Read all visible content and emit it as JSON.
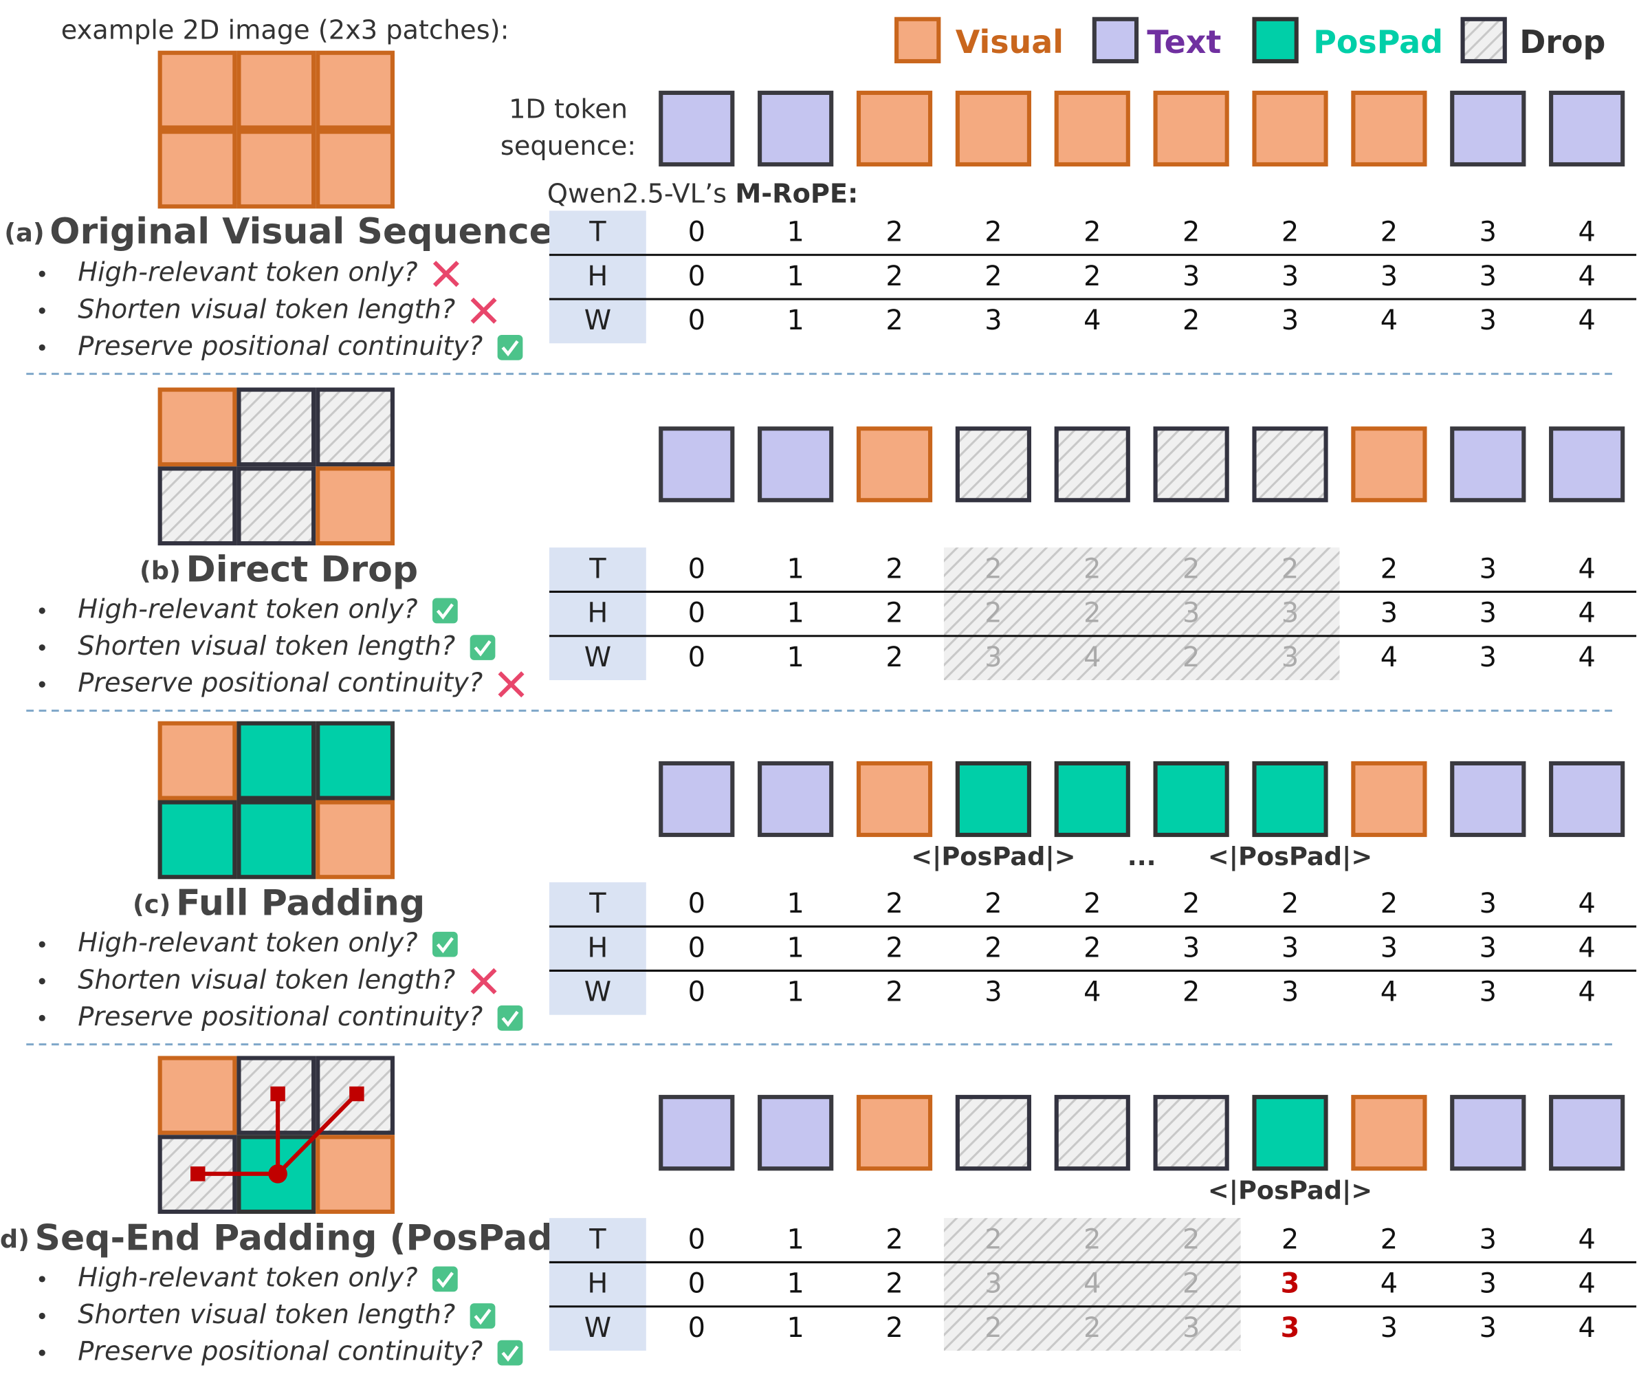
{
  "legend": [
    {
      "label": "Visual",
      "fill": "#f4aa80",
      "stroke": "#c9661d",
      "text_color": "#c9661d"
    },
    {
      "label": "Text",
      "fill": "#c5c5f0",
      "stroke": "#3a3a40",
      "text_color": "#7030a0"
    },
    {
      "label": "PosPad",
      "fill": "#00cfa8",
      "stroke": "#333333",
      "text_color": "#00cfa8"
    },
    {
      "label": "Drop",
      "fill": "hatch",
      "stroke": "#333340",
      "text_color": "#333333"
    }
  ],
  "example_caption": "example 2D image (2x3 patches):",
  "sequence_caption": [
    "1D token",
    "sequence:"
  ],
  "mrope_caption": {
    "prefix": "Qwen2.5-VL’s ",
    "emphasis": "M-RoPE:"
  },
  "panels": [
    {
      "label": "(a)",
      "title": "Original Visual Sequence",
      "grid": [
        "Visual",
        "Visual",
        "Visual",
        "Visual",
        "Visual",
        "Visual"
      ],
      "sequence": [
        "Text",
        "Text",
        "Visual",
        "Visual",
        "Visual",
        "Visual",
        "Visual",
        "Visual",
        "Text",
        "Text"
      ],
      "pospad_labels": [],
      "rows": [
        {
          "axis": "T",
          "values": [
            0,
            1,
            2,
            2,
            2,
            2,
            2,
            2,
            3,
            4
          ]
        },
        {
          "axis": "H",
          "values": [
            0,
            1,
            2,
            2,
            2,
            3,
            3,
            3,
            3,
            4
          ]
        },
        {
          "axis": "W",
          "values": [
            0,
            1,
            2,
            3,
            4,
            2,
            3,
            4,
            3,
            4
          ]
        }
      ],
      "bullets": [
        {
          "text": "High-relevant token only?",
          "ok": false
        },
        {
          "text": "Shorten visual token length?",
          "ok": false
        },
        {
          "text": "Preserve positional continuity?",
          "ok": true
        }
      ]
    },
    {
      "label": "(b)",
      "title": "Direct Drop",
      "grid": [
        "Visual",
        "Drop",
        "Drop",
        "Drop",
        "Drop",
        "Visual"
      ],
      "sequence": [
        "Text",
        "Text",
        "Visual",
        "Drop",
        "Drop",
        "Drop",
        "Drop",
        "Visual",
        "Text",
        "Text"
      ],
      "pospad_labels": [],
      "rows": [
        {
          "axis": "T",
          "values": [
            0,
            1,
            2,
            2,
            2,
            2,
            2,
            2,
            3,
            4
          ]
        },
        {
          "axis": "H",
          "values": [
            0,
            1,
            2,
            2,
            2,
            3,
            3,
            3,
            3,
            4
          ]
        },
        {
          "axis": "W",
          "values": [
            0,
            1,
            2,
            3,
            4,
            2,
            3,
            4,
            3,
            4
          ]
        }
      ],
      "bullets": [
        {
          "text": "High-relevant token only?",
          "ok": true
        },
        {
          "text": "Shorten visual token length?",
          "ok": true
        },
        {
          "text": "Preserve positional continuity?",
          "ok": false
        }
      ]
    },
    {
      "label": "(c)",
      "title": "Full Padding",
      "grid": [
        "Visual",
        "PosPad",
        "PosPad",
        "PosPad",
        "PosPad",
        "Visual"
      ],
      "sequence": [
        "Text",
        "Text",
        "Visual",
        "PosPad",
        "PosPad",
        "PosPad",
        "PosPad",
        "Visual",
        "Text",
        "Text"
      ],
      "pospad_labels": [
        "<|PosPad|>",
        "...",
        "<|PosPad|>"
      ],
      "rows": [
        {
          "axis": "T",
          "values": [
            0,
            1,
            2,
            2,
            2,
            2,
            2,
            2,
            3,
            4
          ]
        },
        {
          "axis": "H",
          "values": [
            0,
            1,
            2,
            2,
            2,
            3,
            3,
            3,
            3,
            4
          ]
        },
        {
          "axis": "W",
          "values": [
            0,
            1,
            2,
            3,
            4,
            2,
            3,
            4,
            3,
            4
          ]
        }
      ],
      "bullets": [
        {
          "text": "High-relevant token only?",
          "ok": true
        },
        {
          "text": "Shorten visual token length?",
          "ok": false
        },
        {
          "text": "Preserve positional continuity?",
          "ok": true
        }
      ]
    },
    {
      "label": "(d)",
      "title": "Seq-End Padding (PosPad)",
      "grid": [
        "Visual",
        "Drop",
        "Drop",
        "Drop",
        "PosPad",
        "Visual"
      ],
      "sequence": [
        "Text",
        "Text",
        "Visual",
        "Drop",
        "Drop",
        "Drop",
        "PosPad",
        "Visual",
        "Text",
        "Text"
      ],
      "pospad_labels": [
        "<|PosPad|>"
      ],
      "rows": [
        {
          "axis": "T",
          "values": [
            0,
            1,
            2,
            2,
            2,
            2,
            2,
            2,
            3,
            4
          ]
        },
        {
          "axis": "H",
          "values": [
            0,
            1,
            2,
            3,
            4,
            2,
            3,
            4,
            3,
            4
          ]
        },
        {
          "axis": "W",
          "values": [
            0,
            1,
            2,
            2,
            2,
            3,
            3,
            3,
            3,
            4
          ]
        }
      ],
      "bullets": [
        {
          "text": "High-relevant token only?",
          "ok": true
        },
        {
          "text": "Shorten visual token length?",
          "ok": true
        },
        {
          "text": "Preserve positional continuity?",
          "ok": true
        }
      ]
    }
  ]
}
